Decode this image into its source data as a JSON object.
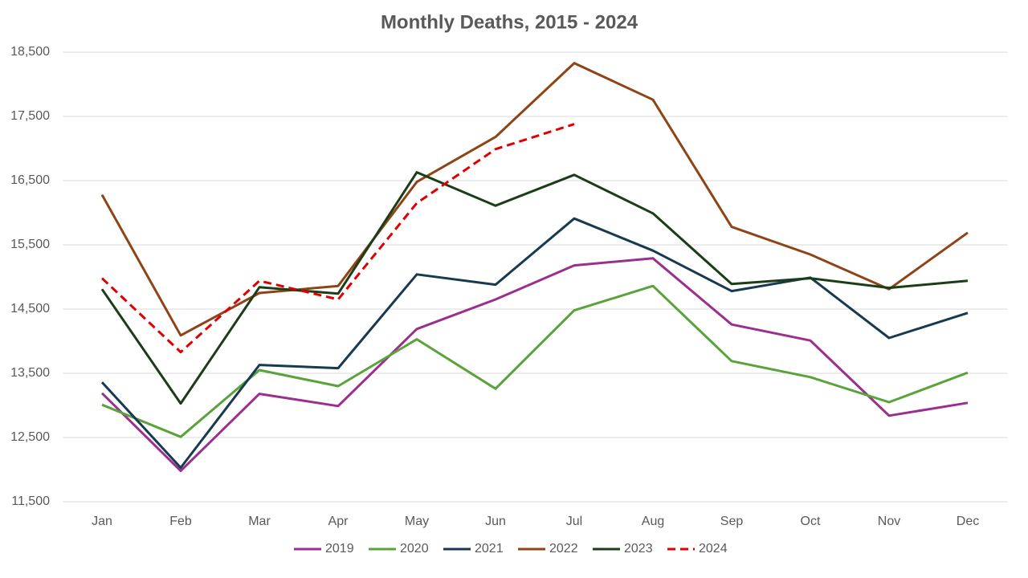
{
  "chart_data": {
    "type": "line",
    "title": "Monthly Deaths, 2015 - 2024",
    "categories": [
      "Jan",
      "Feb",
      "Mar",
      "Apr",
      "May",
      "Jun",
      "Jul",
      "Aug",
      "Sep",
      "Oct",
      "Nov",
      "Dec"
    ],
    "series": [
      {
        "name": "2019",
        "color": "#9b2f8f",
        "values": [
          13190,
          11980,
          13180,
          12990,
          14190,
          14650,
          15180,
          15290,
          14260,
          14010,
          12840,
          13040
        ]
      },
      {
        "name": "2020",
        "color": "#5aa33a",
        "values": [
          13010,
          12510,
          13550,
          13300,
          14030,
          13260,
          14480,
          14860,
          13690,
          13440,
          13050,
          13510
        ]
      },
      {
        "name": "2021",
        "color": "#173a50",
        "values": [
          13360,
          12030,
          13630,
          13580,
          15040,
          14880,
          15910,
          15410,
          14780,
          14990,
          14050,
          14440
        ]
      },
      {
        "name": "2022",
        "color": "#8e4416",
        "values": [
          16280,
          14090,
          14750,
          14860,
          16480,
          17180,
          18330,
          17760,
          15780,
          15350,
          14810,
          15690
        ]
      },
      {
        "name": "2023",
        "color": "#1b3d17",
        "values": [
          14810,
          13030,
          14840,
          14740,
          16630,
          16110,
          16590,
          15990,
          14890,
          14980,
          14830,
          14940
        ]
      },
      {
        "name": "2024",
        "color": "#e00000",
        "dashed": true,
        "values": [
          14980,
          13830,
          14940,
          14650,
          16150,
          16990,
          17380,
          null,
          null,
          null,
          null,
          null
        ]
      }
    ],
    "ylim": [
      11500,
      18500
    ],
    "yticks": [
      {
        "value": 11500,
        "label": "11,500"
      },
      {
        "value": 12500,
        "label": "12,500"
      },
      {
        "value": 13500,
        "label": "13,500"
      },
      {
        "value": 14500,
        "label": "14,500"
      },
      {
        "value": 15500,
        "label": "15,500"
      },
      {
        "value": 16500,
        "label": "16,500"
      },
      {
        "value": 17500,
        "label": "17,500"
      },
      {
        "value": 18500,
        "label": "18,500"
      }
    ],
    "grid": true,
    "legend": "bottom"
  }
}
